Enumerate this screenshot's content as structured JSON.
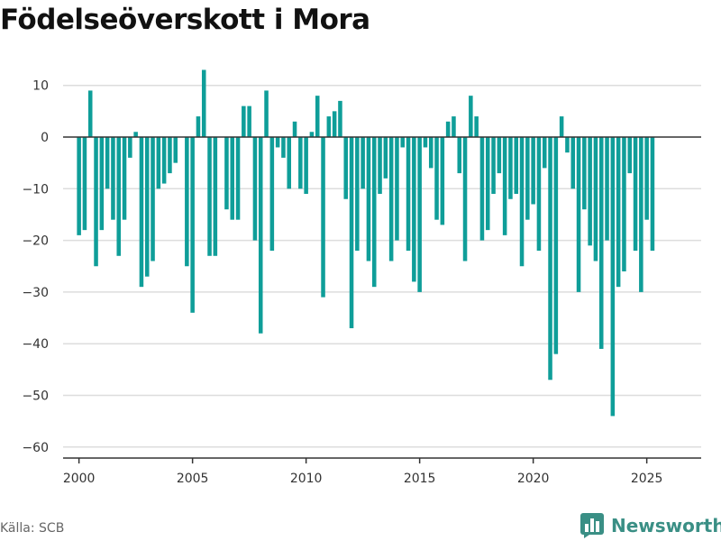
{
  "chart_data": {
    "type": "bar",
    "title": "Födelseöverskott i Mora",
    "xlabel": "",
    "ylabel": "",
    "x_ticks": [
      "2000",
      "2005",
      "2010",
      "2015",
      "2020",
      "2025"
    ],
    "y_ticks": [
      "10",
      "0",
      "−10",
      "−20",
      "−30",
      "−40",
      "−50",
      "−60"
    ],
    "ylim": [
      -62,
      12
    ],
    "xlim_start_year": 1999.3,
    "bar_color": "#0f9e99",
    "grid": true,
    "start_year": 2000,
    "periods_per_year": 4,
    "values": [
      -19,
      -18,
      9,
      -25,
      -18,
      -10,
      -16,
      -23,
      -16,
      -4,
      1,
      -29,
      -27,
      -24,
      -10,
      -9,
      -7,
      -5,
      0,
      -25,
      -34,
      4,
      13,
      -23,
      -23,
      0,
      -14,
      -16,
      -16,
      6,
      6,
      -20,
      -38,
      9,
      -22,
      -2,
      -4,
      -10,
      3,
      -10,
      -11,
      1,
      8,
      -31,
      4,
      5,
      7,
      -12,
      -37,
      -22,
      -10,
      -24,
      -29,
      -11,
      -8,
      -24,
      -20,
      -2,
      -22,
      -28,
      -30,
      -2,
      -6,
      -16,
      -17,
      3,
      4,
      -7,
      -24,
      8,
      4,
      -20,
      -18,
      -11,
      -7,
      -19,
      -12,
      -11,
      -25,
      -16,
      -13,
      -22,
      -6,
      -47,
      -42,
      4,
      -3,
      -10,
      -30,
      -14,
      -21,
      -24,
      -41,
      -20,
      -54,
      -29,
      -26,
      -7,
      -22,
      -30,
      -16,
      -22
    ]
  },
  "footer": {
    "source": "Källa: SCB",
    "brand": "Newsworthy",
    "brand_color": "#3a8f85"
  }
}
